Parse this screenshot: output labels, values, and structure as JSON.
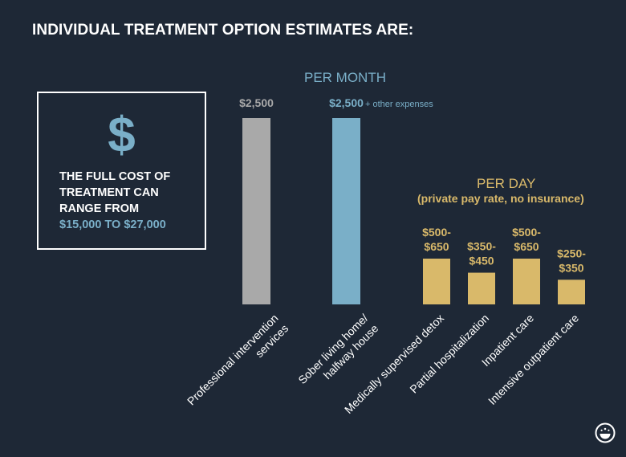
{
  "title": "INDIVIDUAL TREATMENT OPTION ESTIMATES ARE:",
  "summary_box": {
    "icon": "dollar-icon",
    "line1": "THE FULL COST OF",
    "line2": "TREATMENT CAN",
    "line3": "RANGE FROM",
    "range": "$15,000 TO $27,000"
  },
  "colors": {
    "background": "#1e2836",
    "gray_bar": "#a9a9a9",
    "blue_bar": "#7aafc8",
    "gold_bar": "#d9b96a"
  },
  "chart_data": [
    {
      "type": "bar",
      "group_label": "PER MONTH",
      "categories": [
        "Professional intervention services",
        "Sober living home/ halfway house"
      ],
      "values": [
        2500,
        2500
      ],
      "value_labels": [
        "$2,500",
        "$2,500"
      ],
      "annotation": "+ other expenses",
      "bar_colors": [
        "#a9a9a9",
        "#7aafc8"
      ]
    },
    {
      "type": "bar",
      "group_label": "PER DAY",
      "group_note": "(private pay rate, no insurance)",
      "categories": [
        "Medically supervised detox",
        "Partial hospitalization",
        "Inpatient care",
        "Intensive outpatient care"
      ],
      "ranges": [
        [
          500,
          650
        ],
        [
          350,
          450
        ],
        [
          500,
          650
        ],
        [
          250,
          350
        ]
      ],
      "value_labels_line1": [
        "$500-",
        "$350-",
        "$500-",
        "$250-"
      ],
      "value_labels_line2": [
        "$650",
        "$450",
        "$650",
        "$350"
      ],
      "bar_color": "#d9b96a"
    }
  ],
  "logo": "brand-logo-icon"
}
